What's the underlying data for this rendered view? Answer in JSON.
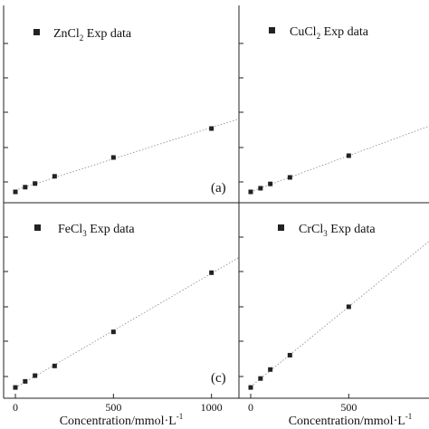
{
  "chart_data": [
    {
      "type": "scatter",
      "panel": "(a)",
      "series": [
        {
          "name_main": "ZnCl",
          "name_sub": "2",
          "name_rest": " Exp data",
          "x": [
            0,
            50,
            100,
            200,
            500,
            1000
          ],
          "y": [
            0.05,
            0.18,
            0.28,
            0.48,
            1.0,
            1.8
          ]
        }
      ],
      "fit_line": true,
      "xlim": [
        -60,
        1140
      ],
      "ylim": [
        -0.25,
        5.2
      ],
      "xticks": [],
      "xlabel": ""
    },
    {
      "type": "scatter",
      "panel": "",
      "series": [
        {
          "name_main": "CuCl",
          "name_sub": "2",
          "name_rest": " Exp data",
          "x": [
            0,
            50,
            100,
            200,
            500
          ],
          "y": [
            0.05,
            0.15,
            0.27,
            0.45,
            1.05
          ]
        }
      ],
      "fit_line": true,
      "xlim": [
        -60,
        1140
      ],
      "ylim": [
        -0.25,
        5.2
      ],
      "xticks": [],
      "xlabel": ""
    },
    {
      "type": "scatter",
      "panel": "(c)",
      "series": [
        {
          "name_main": "FeCl",
          "name_sub": "3",
          "name_rest": " Exp data",
          "x": [
            0,
            50,
            100,
            200,
            500,
            1000
          ],
          "y": [
            0.05,
            0.22,
            0.38,
            0.65,
            1.6,
            3.25
          ]
        }
      ],
      "fit_line": true,
      "xlim": [
        -60,
        1140
      ],
      "ylim": [
        -0.25,
        5.2
      ],
      "xticks": [
        "0",
        "500",
        "1000"
      ],
      "xlabel_main": "Concentration/mmol·L",
      "xlabel_sup": "-1"
    },
    {
      "type": "scatter",
      "panel": "",
      "series": [
        {
          "name_main": "CrCl",
          "name_sub": "3",
          "name_rest": " Exp data",
          "x": [
            0,
            50,
            100,
            200,
            500
          ],
          "y": [
            0.05,
            0.3,
            0.55,
            0.95,
            2.3
          ]
        }
      ],
      "fit_line": true,
      "xlim": [
        -60,
        1140
      ],
      "ylim": [
        -0.25,
        5.2
      ],
      "xticks": [
        "0",
        "500"
      ],
      "xlabel_main": "Concentration/mmol·L",
      "xlabel_sup": "-1"
    }
  ]
}
